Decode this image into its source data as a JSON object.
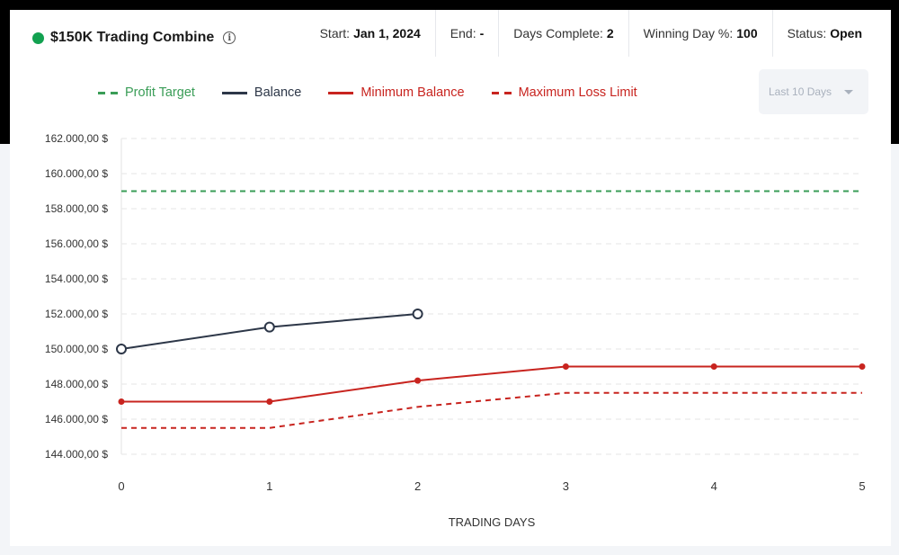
{
  "header": {
    "title": "$150K Trading Combine",
    "status_dot_color": "#12a150",
    "stats": [
      {
        "label": "Start:",
        "value": "Jan 1, 2024"
      },
      {
        "label": "End:",
        "value": "-"
      },
      {
        "label": "Days Complete:",
        "value": "2"
      },
      {
        "label": "Winning Day %:",
        "value": "100"
      },
      {
        "label": "Status:",
        "value": "Open"
      }
    ]
  },
  "range_select": {
    "value": "Last 10 Days"
  },
  "chart_data": {
    "type": "line",
    "xlabel": "TRADING DAYS",
    "ylabel": "",
    "x": [
      0,
      1,
      2,
      3,
      4,
      5
    ],
    "xlim": [
      0,
      5
    ],
    "ylim": [
      144000,
      162000
    ],
    "yticks": [
      144000,
      146000,
      148000,
      150000,
      152000,
      154000,
      156000,
      158000,
      160000,
      162000
    ],
    "ytick_labels": [
      "144.000,00 $",
      "146.000,00 $",
      "148.000,00 $",
      "150.000,00 $",
      "152.000,00 $",
      "154.000,00 $",
      "156.000,00 $",
      "158.000,00 $",
      "160.000,00 $",
      "162.000,00 $"
    ],
    "grid": true,
    "legend_position": "top",
    "series": [
      {
        "name": "Profit Target",
        "color": "#3a9d57",
        "dash": true,
        "markers": false,
        "values": [
          159000,
          159000,
          159000,
          159000,
          159000,
          159000
        ]
      },
      {
        "name": "Balance",
        "color": "#2d3748",
        "dash": false,
        "markers": "hollow",
        "values": [
          150000,
          151250,
          152000,
          null,
          null,
          null
        ]
      },
      {
        "name": "Minimum Balance",
        "color": "#c8241f",
        "dash": false,
        "markers": "filled",
        "values": [
          147000,
          147000,
          148200,
          149000,
          149000,
          149000
        ]
      },
      {
        "name": "Maximum Loss Limit",
        "color": "#c8241f",
        "dash": true,
        "markers": false,
        "values": [
          145500,
          145500,
          146700,
          147500,
          147500,
          147500
        ]
      }
    ]
  }
}
